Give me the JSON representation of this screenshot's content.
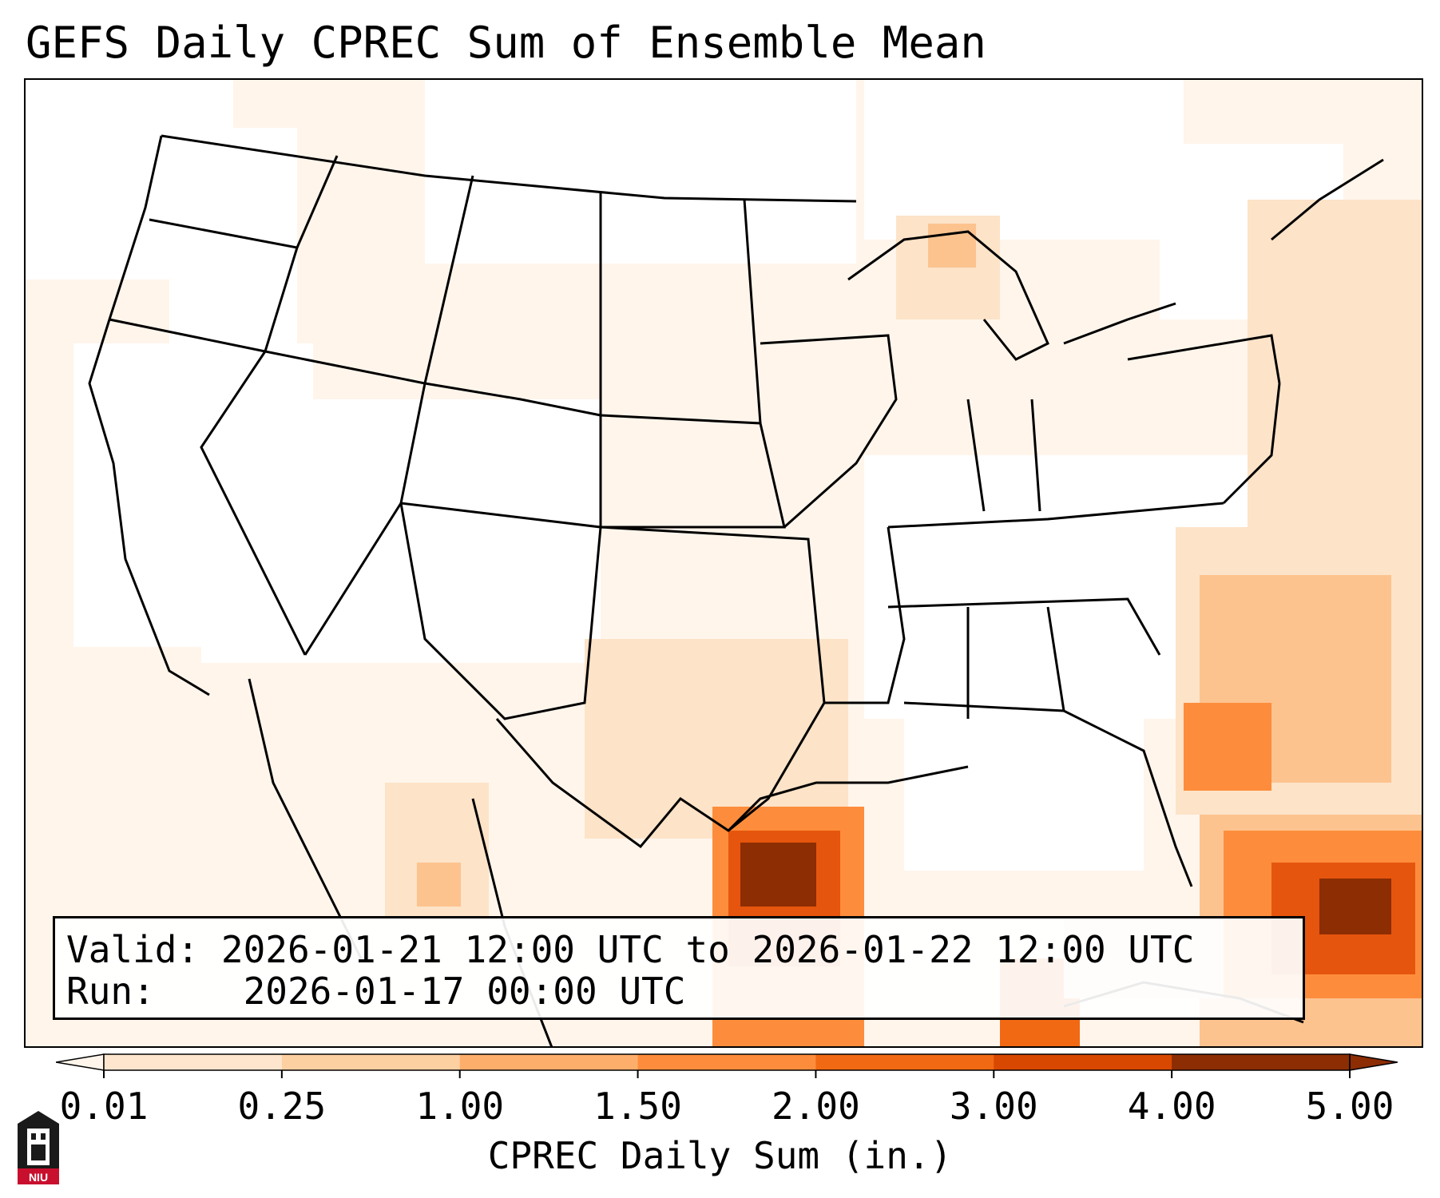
{
  "title": "GEFS Daily CPREC Sum of Ensemble Mean",
  "info": {
    "valid_label": "Valid:",
    "valid_value": "2026-01-21 12:00 UTC to 2026-01-22 12:00 UTC",
    "run_label": "Run:",
    "run_value": "2026-01-17 00:00 UTC"
  },
  "colorbar": {
    "label": "CPREC Daily Sum (in.)",
    "ticks": [
      "0.01",
      "0.25",
      "1.00",
      "1.50",
      "2.00",
      "3.00",
      "4.00",
      "5.00"
    ],
    "colors": [
      "#fff5eb",
      "#fee6ce",
      "#fdd0a2",
      "#fdae6b",
      "#fd8d3c",
      "#f16913",
      "#d94801",
      "#8c2d04"
    ],
    "extend": "both"
  },
  "map": {
    "region": "CONUS",
    "precip_colors": {
      "light": "#fff3e6",
      "light2": "#fde3c8",
      "mid": "#fdc38f",
      "orange": "#fd8d3c",
      "dark_orange": "#e6550d",
      "brown": "#8c2d04"
    }
  },
  "logo": {
    "text": "NIU",
    "color": "#c8102e"
  }
}
